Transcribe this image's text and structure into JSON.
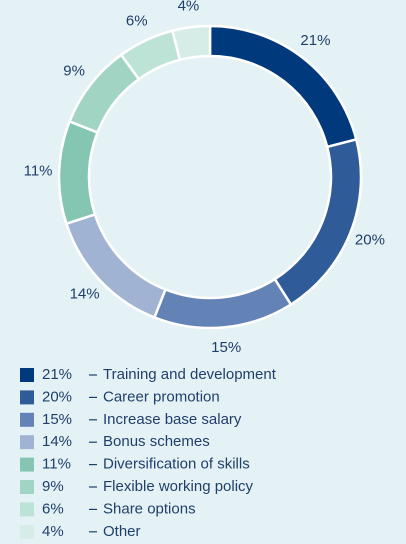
{
  "chart_data": {
    "type": "donut",
    "categories": [
      "Training and development",
      "Career promotion",
      "Increase base salary",
      "Bonus schemes",
      "Diversification of skills",
      "Flexible working policy",
      "Share options",
      "Other"
    ],
    "values": [
      21,
      20,
      15,
      14,
      11,
      9,
      6,
      4
    ],
    "value_labels": [
      "21%",
      "20%",
      "15%",
      "14%",
      "11%",
      "9%",
      "6%",
      "4%"
    ],
    "colors": [
      "#003a7d",
      "#2f5c98",
      "#6383b6",
      "#a0b3d2",
      "#85c6b3",
      "#a2d4c4",
      "#bde2d6",
      "#d5ede6"
    ],
    "legend": "bottom"
  }
}
